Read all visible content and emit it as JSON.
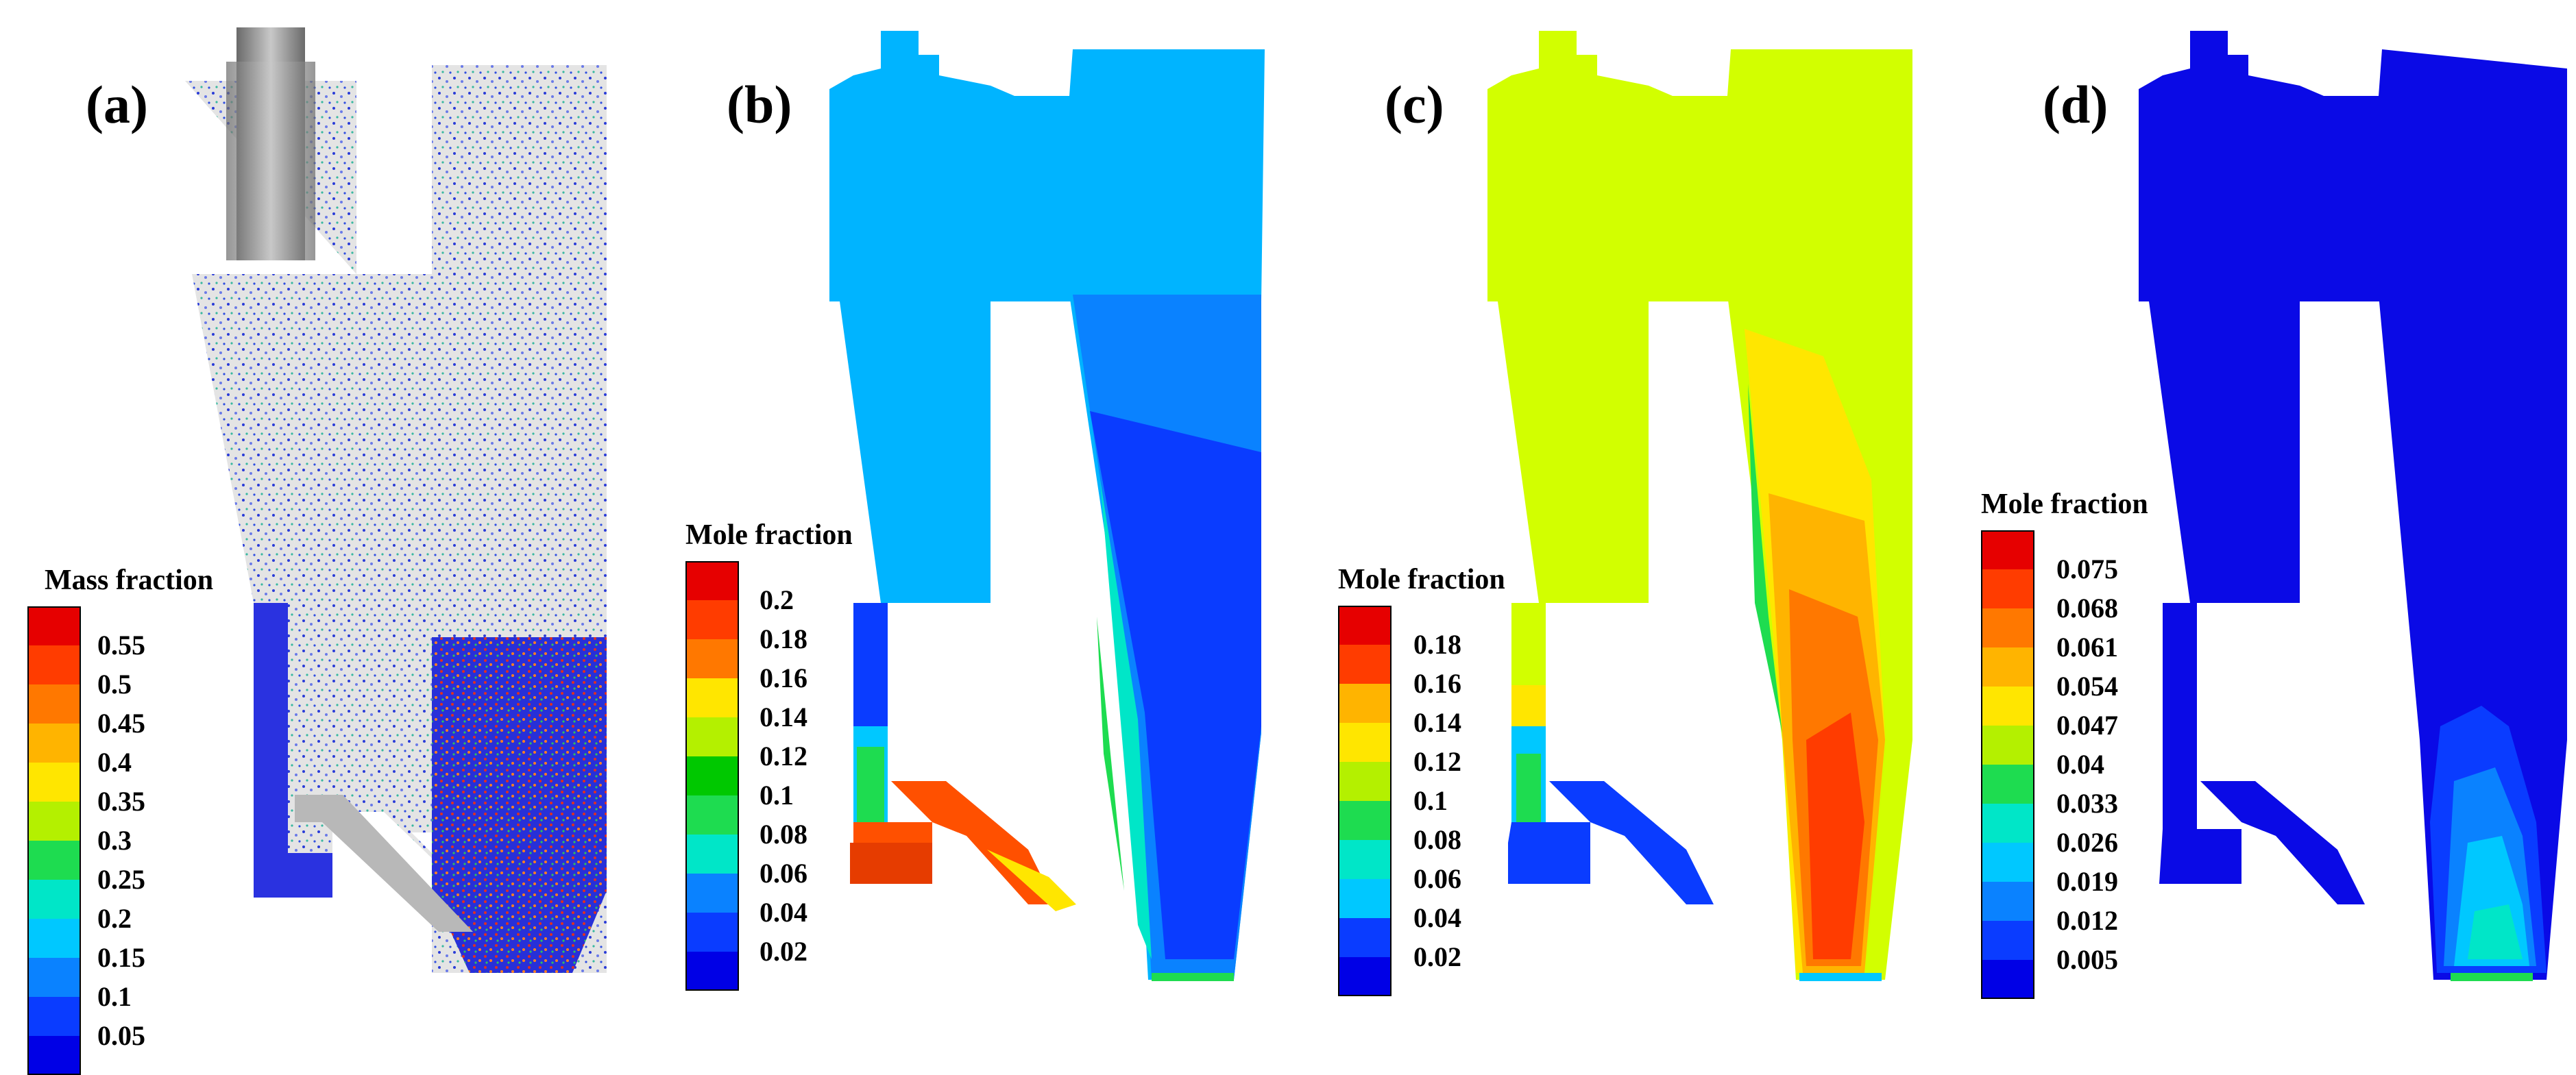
{
  "panels": [
    {
      "label": "(a)",
      "legend_title": "Mass fraction",
      "ticks": [
        "0.55",
        "0.5",
        "0.45",
        "0.4",
        "0.35",
        "0.3",
        "0.25",
        "0.2",
        "0.15",
        "0.1",
        "0.05"
      ]
    },
    {
      "label": "(b)",
      "legend_title": "Mole fraction",
      "ticks": [
        "0.2",
        "0.18",
        "0.16",
        "0.14",
        "0.12",
        "0.1",
        "0.08",
        "0.06",
        "0.04",
        "0.02"
      ]
    },
    {
      "label": "(c)",
      "legend_title": "Mole fraction",
      "ticks": [
        "0.18",
        "0.16",
        "0.14",
        "0.12",
        "0.1",
        "0.08",
        "0.06",
        "0.04",
        "0.02"
      ]
    },
    {
      "label": "(d)",
      "legend_title": "Mole fraction",
      "ticks": [
        "0.075",
        "0.068",
        "0.061",
        "0.054",
        "0.047",
        "0.04",
        "0.033",
        "0.026",
        "0.019",
        "0.012",
        "0.005"
      ]
    }
  ],
  "colorscale": [
    "#0000e6",
    "#0a3cff",
    "#0a82ff",
    "#00c8ff",
    "#00e6c8",
    "#1edc50",
    "#00c800",
    "#b4f000",
    "#ffe600",
    "#ffb400",
    "#ff7800",
    "#ff3c00",
    "#e60000"
  ]
}
